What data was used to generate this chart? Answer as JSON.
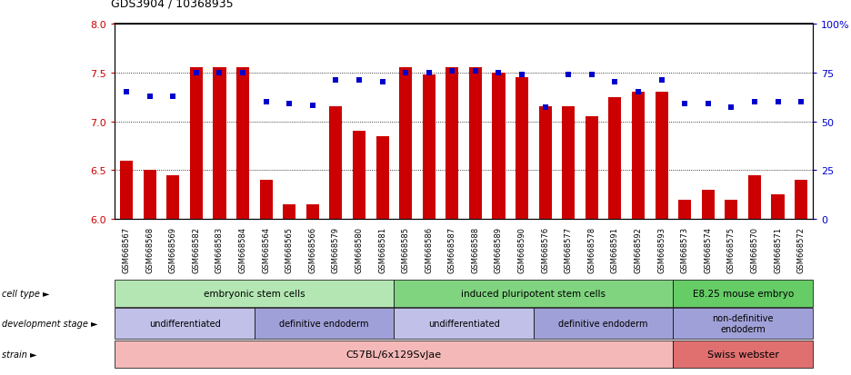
{
  "title": "GDS3904 / 10368935",
  "samples": [
    "GSM668567",
    "GSM668568",
    "GSM668569",
    "GSM668582",
    "GSM668583",
    "GSM668584",
    "GSM668564",
    "GSM668565",
    "GSM668566",
    "GSM668579",
    "GSM668580",
    "GSM668581",
    "GSM668585",
    "GSM668586",
    "GSM668587",
    "GSM668588",
    "GSM668589",
    "GSM668590",
    "GSM668576",
    "GSM668577",
    "GSM668578",
    "GSM668591",
    "GSM668592",
    "GSM668593",
    "GSM668573",
    "GSM668574",
    "GSM668575",
    "GSM668570",
    "GSM668571",
    "GSM668572"
  ],
  "bar_values": [
    6.6,
    6.5,
    6.45,
    7.55,
    7.55,
    7.55,
    6.4,
    6.15,
    6.15,
    7.15,
    6.9,
    6.85,
    7.55,
    7.48,
    7.55,
    7.55,
    7.5,
    7.45,
    7.15,
    7.15,
    7.05,
    7.25,
    7.3,
    7.3,
    6.2,
    6.3,
    6.2,
    6.45,
    6.25,
    6.4
  ],
  "scatter_pct": [
    65,
    63,
    63,
    75,
    75,
    75,
    60,
    59,
    58,
    71,
    71,
    70,
    75,
    75,
    76,
    76,
    75,
    74,
    57,
    74,
    74,
    70,
    65,
    71,
    59,
    59,
    57,
    60,
    60,
    60
  ],
  "ylim_left": [
    6.0,
    8.0
  ],
  "ylim_right": [
    0,
    100
  ],
  "yticks_left": [
    6.0,
    6.5,
    7.0,
    7.5,
    8.0
  ],
  "yticks_right": [
    0,
    25,
    50,
    75,
    100
  ],
  "bar_color": "#cc0000",
  "scatter_color": "#0000cc",
  "cell_type_groups": [
    {
      "label": "embryonic stem cells",
      "start": 0,
      "end": 11,
      "color": "#b3e6b3"
    },
    {
      "label": "induced pluripotent stem cells",
      "start": 12,
      "end": 23,
      "color": "#80d480"
    },
    {
      "label": "E8.25 mouse embryo",
      "start": 24,
      "end": 29,
      "color": "#66cc66"
    }
  ],
  "dev_stage_groups": [
    {
      "label": "undifferentiated",
      "start": 0,
      "end": 5,
      "color": "#c0c0e8"
    },
    {
      "label": "definitive endoderm",
      "start": 6,
      "end": 11,
      "color": "#a0a0d8"
    },
    {
      "label": "undifferentiated",
      "start": 12,
      "end": 17,
      "color": "#c0c0e8"
    },
    {
      "label": "definitive endoderm",
      "start": 18,
      "end": 23,
      "color": "#a0a0d8"
    },
    {
      "label": "non-definitive\nendoderm",
      "start": 24,
      "end": 29,
      "color": "#a0a0d8"
    }
  ],
  "strain_groups": [
    {
      "label": "C57BL/6x129SvJae",
      "start": 0,
      "end": 23,
      "color": "#f4b8b8"
    },
    {
      "label": "Swiss webster",
      "start": 24,
      "end": 29,
      "color": "#e07070"
    }
  ],
  "row_labels": [
    "cell type",
    "development stage",
    "strain"
  ]
}
